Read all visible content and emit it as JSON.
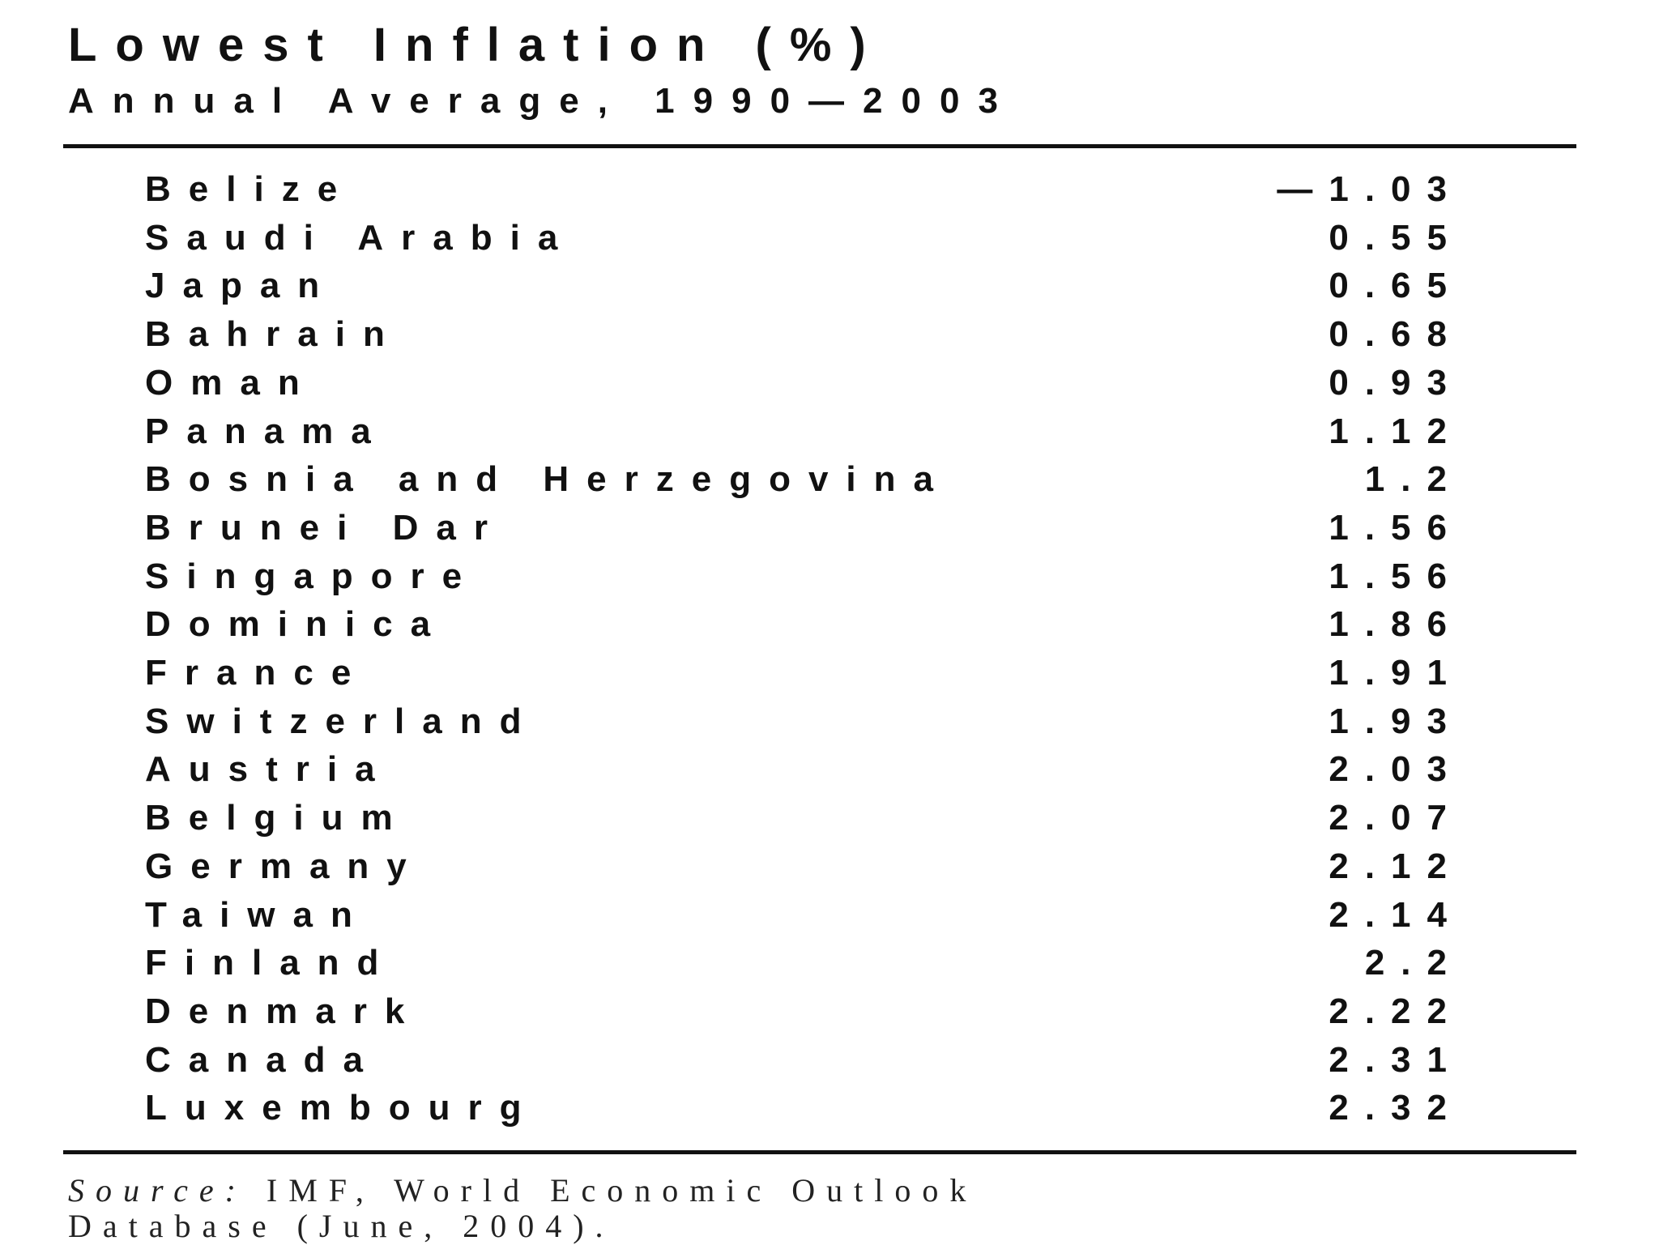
{
  "header": {
    "title": "Lowest Inflation (%)",
    "subtitle": "Annual Average, 1990—2003"
  },
  "table": {
    "rows": [
      [
        "Belize",
        "—1.03"
      ],
      [
        "Saudi Arabia",
        "0.55"
      ],
      [
        "Japan",
        "0.65"
      ],
      [
        "Bahrain",
        "0.68"
      ],
      [
        "Oman",
        "0.93"
      ],
      [
        "Panama",
        "1.12"
      ],
      [
        "Bosnia and Herzegovina",
        "1.2"
      ],
      [
        "Brunei Dar",
        "1.56"
      ],
      [
        "Singapore",
        "1.56"
      ],
      [
        "Dominica",
        "1.86"
      ],
      [
        "France",
        "1.91"
      ],
      [
        "Switzerland",
        "1.93"
      ],
      [
        "Austria",
        "2.03"
      ],
      [
        "Belgium",
        "2.07"
      ],
      [
        "Germany",
        "2.12"
      ],
      [
        "Taiwan",
        "2.14"
      ],
      [
        "Finland",
        "2.2"
      ],
      [
        "Denmark",
        "2.22"
      ],
      [
        "Canada",
        "2.31"
      ],
      [
        "Luxembourg",
        "2.32"
      ]
    ]
  },
  "source": {
    "label": "Source:",
    "text": "IMF, World Economic Outlook",
    "text2": "Database (June, 2004)."
  }
}
